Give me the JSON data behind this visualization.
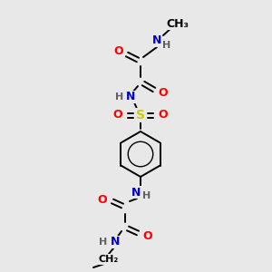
{
  "bg_color": "#e8e8e8",
  "element_colors": {
    "O": "#ff0000",
    "N": "#0000cc",
    "S": "#cccc00",
    "C": "#000000",
    "H": "#606060"
  },
  "font_size": 9,
  "lw": 1.4
}
